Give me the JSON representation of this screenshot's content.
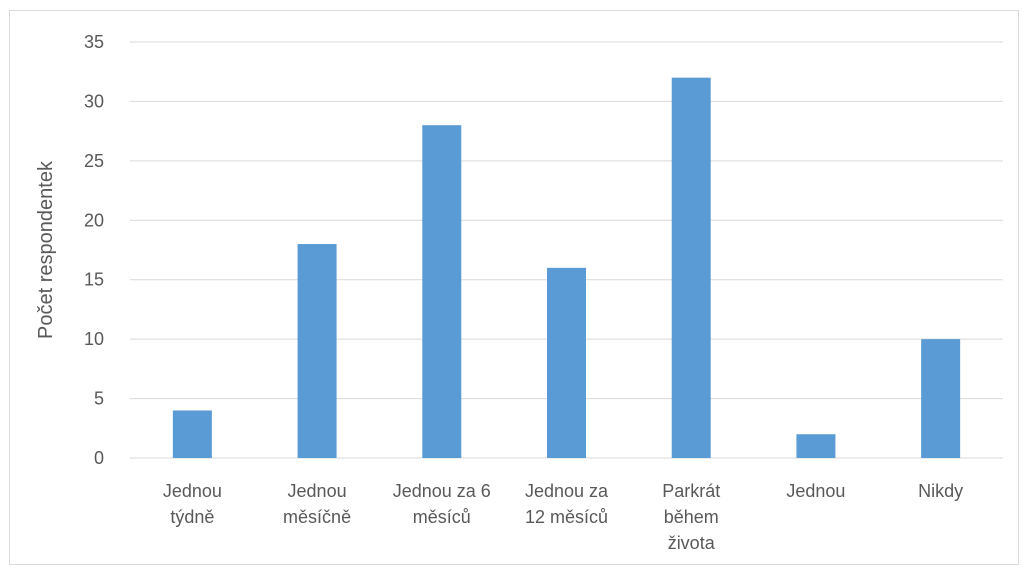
{
  "chart_data": {
    "type": "bar",
    "title": "",
    "xlabel": "",
    "ylabel": "Počet respondentek",
    "ylim": [
      0,
      35
    ],
    "yticks": [
      0,
      5,
      10,
      15,
      20,
      25,
      30,
      35
    ],
    "grid": true,
    "legend": "none",
    "bar_color": "#5b9bd5",
    "categories": [
      [
        "Jednou",
        "týdně"
      ],
      [
        "Jednou",
        "měsíčně"
      ],
      [
        "Jednou za 6",
        "měsíců"
      ],
      [
        "Jednou za",
        "12 měsíců"
      ],
      [
        "Parkrát",
        "během",
        "života"
      ],
      [
        "Jednou"
      ],
      [
        "Nikdy"
      ]
    ],
    "values": [
      4,
      18,
      28,
      16,
      32,
      2,
      10
    ]
  }
}
